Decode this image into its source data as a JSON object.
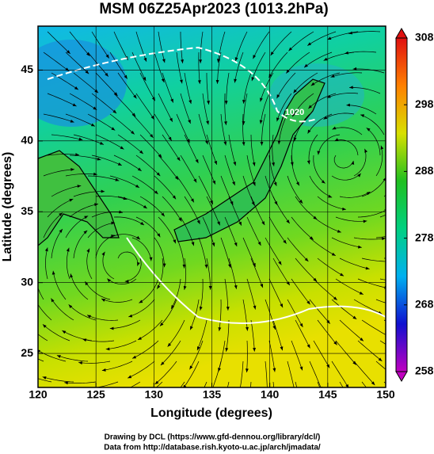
{
  "title": "MSM 06Z25Apr2023 (1013.2hPa)",
  "map": {
    "type": "map",
    "xlabel": "Longitude (degrees)",
    "ylabel": "Latitude  (degrees)",
    "xlim": [
      120,
      150
    ],
    "ylim": [
      22.6,
      48.1
    ],
    "xticks": [
      120,
      125,
      130,
      135,
      140,
      145,
      150
    ],
    "yticks": [
      25,
      30,
      35,
      40,
      45
    ],
    "grid": true,
    "contour_labels": [
      "1020"
    ]
  },
  "colorbar": {
    "lim": [
      258,
      308
    ],
    "ticks": [
      258,
      268,
      278,
      288,
      298,
      308
    ],
    "colors": [
      "#c000c0",
      "#1010d0",
      "#00b0f0",
      "#00d080",
      "#20c020",
      "#d8e000",
      "#ff8000",
      "#e01010"
    ]
  },
  "footer": [
    "Drawing by DCL (https://www.gfd-dennou.org/library/dcl/)",
    "Data from http://database.rish.kyoto-u.ac.jp/arch/jmadata/"
  ]
}
